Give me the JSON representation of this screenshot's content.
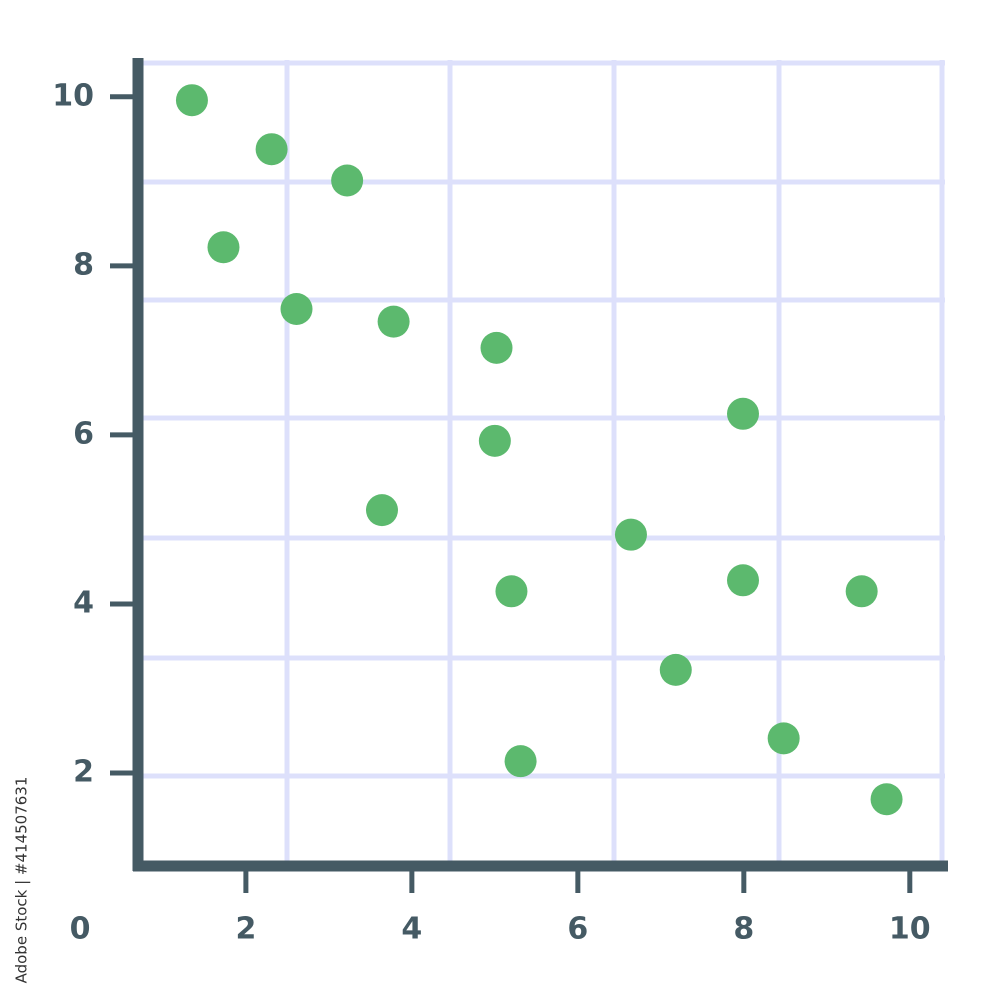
{
  "chart_data": {
    "type": "scatter",
    "x": [
      1.35,
      2.31,
      3.22,
      1.73,
      2.61,
      3.78,
      5.02,
      5.0,
      3.64,
      7.99,
      6.64,
      5.2,
      7.99,
      9.42,
      7.18,
      5.31,
      8.48,
      9.72
    ],
    "series": [
      {
        "color": "#5cb96e",
        "values": [
          9.96,
          9.38,
          9.01,
          8.22,
          7.49,
          7.34,
          7.03,
          5.93,
          5.11,
          6.25,
          4.82,
          4.15,
          4.28,
          4.15,
          3.22,
          2.14,
          2.41,
          1.69
        ]
      }
    ],
    "xlim": [
      0.7,
      10.4
    ],
    "ylim": [
      0.9,
      10.4
    ],
    "xticks": [
      2,
      4,
      6,
      8,
      10
    ],
    "yticks": [
      2,
      4,
      6,
      8,
      10
    ],
    "origin_label": "0",
    "watermark": "Adobe Stock | #414507631"
  }
}
